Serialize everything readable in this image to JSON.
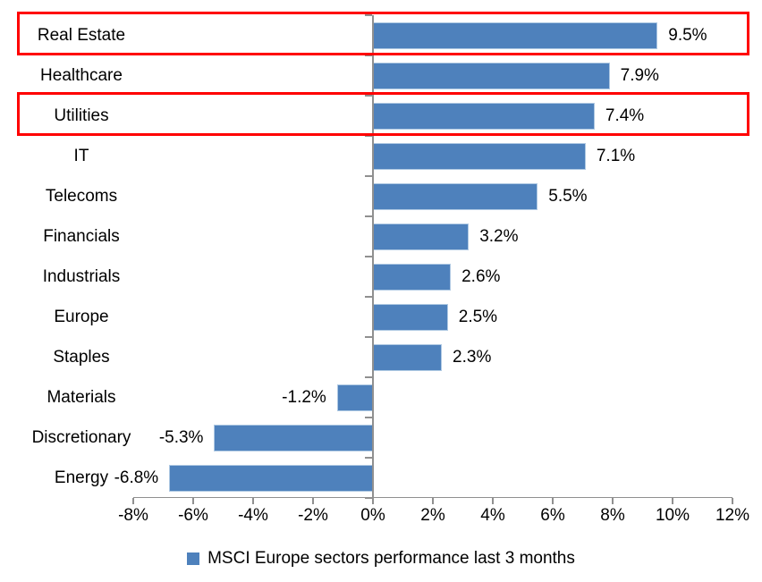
{
  "chart_data": {
    "type": "bar",
    "orientation": "horizontal",
    "legend_label": "MSCI Europe sectors performance last 3 months",
    "legend_position": "bottom",
    "grid": false,
    "categories": [
      "Real Estate",
      "Healthcare",
      "Utilities",
      "IT",
      "Telecoms",
      "Financials",
      "Industrials",
      "Europe",
      "Staples",
      "Materials",
      "Discretionary",
      "Energy"
    ],
    "series": [
      {
        "name": "MSCI Europe sectors performance last 3 months",
        "values": [
          9.5,
          7.9,
          7.4,
          7.1,
          5.5,
          3.2,
          2.6,
          2.5,
          2.3,
          -1.2,
          -5.3,
          -6.8
        ]
      }
    ],
    "value_labels": [
      "9.5%",
      "7.9%",
      "7.4%",
      "7.1%",
      "5.5%",
      "3.2%",
      "2.6%",
      "2.5%",
      "2.3%",
      "-1.2%",
      "-5.3%",
      "-6.8%"
    ],
    "x_tick_labels": [
      "-8%",
      "-6%",
      "-4%",
      "-2%",
      "0%",
      "2%",
      "4%",
      "6%",
      "8%",
      "10%",
      "12%"
    ],
    "x_tick_values": [
      -8,
      -6,
      -4,
      -2,
      0,
      2,
      4,
      6,
      8,
      10,
      12
    ],
    "axis_range": [
      -8,
      12
    ],
    "highlighted_categories": [
      "Real Estate",
      "Utilities"
    ],
    "colors": {
      "bar": "#4E81BC",
      "bar_border": "#AFC9E3",
      "axis": "#909090",
      "text": "#000000",
      "highlight_box": "#FF0000"
    }
  }
}
